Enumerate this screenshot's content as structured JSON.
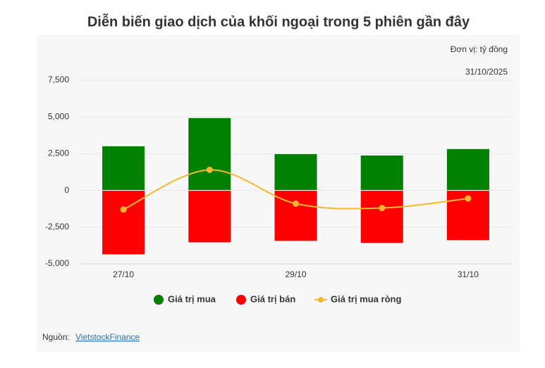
{
  "chart_data": {
    "type": "bar",
    "title": "Diễn biến giao dịch của khối ngoại trong 5 phiên gần đây",
    "unit_note": "Đơn vị: tỷ đồng",
    "date_note": "31/10/2025",
    "categories": [
      "27/10",
      null,
      "29/10",
      null,
      "31/10"
    ],
    "series": [
      {
        "name": "Giá trị mua",
        "type": "bar",
        "color": "#008000",
        "values": [
          3030,
          4950,
          2500,
          2400,
          2840
        ]
      },
      {
        "name": "Giá trị bán",
        "type": "bar",
        "color": "#ff0000",
        "values": [
          -4375,
          -3560,
          -3460,
          -3600,
          -3410
        ]
      },
      {
        "name": "Giá trị mua ròng",
        "type": "line",
        "color": "#f5b82e",
        "values": [
          -1300,
          1400,
          -900,
          -1200,
          -550
        ]
      }
    ],
    "ylim": [
      -5000,
      7500
    ],
    "yticks": [
      {
        "value": -5000,
        "label": "-5,000"
      },
      {
        "value": -2500,
        "label": "-2,500"
      },
      0,
      {
        "value": 2500,
        "label": "2,500"
      },
      {
        "value": 5000,
        "label": "5,000"
      },
      {
        "value": 7500,
        "label": "7,500"
      }
    ],
    "grid": true,
    "source_label": "Nguồn:",
    "source_link": "VietstockFinance"
  }
}
